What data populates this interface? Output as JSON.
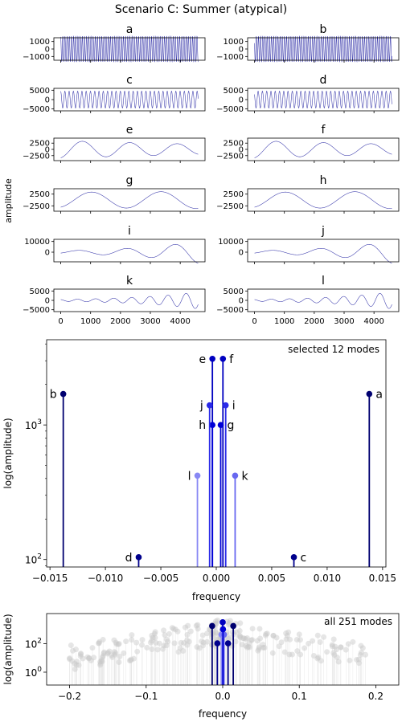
{
  "title": "Scenario C: Summer (atypical)",
  "chart_data": [
    {
      "type": "line",
      "name": "mode-panels",
      "shared_ylabel": "amplitude",
      "x_ticks": [
        0,
        1000,
        2000,
        3000,
        4000
      ],
      "xlim": [
        -230,
        4830
      ],
      "panels": [
        {
          "label": "a",
          "freq": 0.0138,
          "amp": 1700,
          "growth": 0.0,
          "phase": 0.3,
          "ylim": [
            -1500,
            1500
          ],
          "yticks": [
            1000,
            0,
            -1000
          ],
          "yticklabels": [
            "1000",
            "0",
            "−1000"
          ]
        },
        {
          "label": "b",
          "freq": -0.0138,
          "amp": 1700,
          "growth": 0.0,
          "phase": 1.1,
          "ylim": [
            -1500,
            1500
          ],
          "yticks": [
            1000,
            0,
            -1000
          ],
          "yticklabels": [
            "1000",
            "0",
            "−1000"
          ]
        },
        {
          "label": "c",
          "freq": 0.007,
          "amp": 4500,
          "growth": 0.0,
          "phase": 0.2,
          "ylim": [
            -6000,
            6000
          ],
          "yticks": [
            5000,
            0,
            -5000
          ],
          "yticklabels": [
            "5000",
            "0",
            "−5000"
          ]
        },
        {
          "label": "d",
          "freq": -0.007,
          "amp": 4500,
          "growth": 0.0,
          "phase": 0.9,
          "ylim": [
            -6000,
            6000
          ],
          "yticks": [
            5000,
            0,
            -5000
          ],
          "yticklabels": [
            "5000",
            "0",
            "−5000"
          ]
        },
        {
          "label": "e",
          "freq": 0.00063,
          "amp": 3500,
          "growth": -0.00011,
          "phase": 3.4,
          "ylim": [
            -4500,
            4500
          ],
          "yticks": [
            2500,
            0,
            -2500
          ],
          "yticklabels": [
            "2500",
            "0",
            "−2500"
          ]
        },
        {
          "label": "f",
          "freq": -0.00063,
          "amp": 3500,
          "growth": -0.00011,
          "phase": 3.4,
          "ylim": [
            -4500,
            4500
          ],
          "yticks": [
            2500,
            0,
            -2500
          ],
          "yticklabels": [
            "2500",
            "0",
            "−2500"
          ]
        },
        {
          "label": "g",
          "freq": 0.00043,
          "amp": 3300,
          "growth": 2e-05,
          "phase": 3.5,
          "ylim": [
            -4800,
            4800
          ],
          "yticks": [
            2500,
            -2500
          ],
          "yticklabels": [
            "2500",
            "−2500"
          ]
        },
        {
          "label": "h",
          "freq": -0.00043,
          "amp": 3300,
          "growth": 2e-05,
          "phase": 3.5,
          "ylim": [
            -4800,
            4800
          ],
          "yticks": [
            2500,
            -2500
          ],
          "yticklabels": [
            "2500",
            "−2500"
          ]
        },
        {
          "label": "i",
          "freq": 0.00062,
          "amp": 1300,
          "growth": 0.00045,
          "phase": 4.0,
          "ylim": [
            -9000,
            12000
          ],
          "yticks": [
            10000,
            0
          ],
          "yticklabels": [
            "10000",
            "0"
          ]
        },
        {
          "label": "j",
          "freq": -0.00062,
          "amp": 1300,
          "growth": 0.00045,
          "phase": 4.0,
          "ylim": [
            -9000,
            12000
          ],
          "yticks": [
            10000,
            0
          ],
          "yticklabels": [
            "10000",
            "0"
          ]
        },
        {
          "label": "k",
          "freq": 0.00165,
          "amp": 500,
          "growth": 0.00048,
          "phase": 0.5,
          "ylim": [
            -6000,
            6000
          ],
          "yticks": [
            5000,
            0,
            -5000
          ],
          "yticklabels": [
            "5000",
            "0",
            "−5000"
          ]
        },
        {
          "label": "l",
          "freq": -0.00165,
          "amp": 500,
          "growth": 0.00048,
          "phase": 0.5,
          "ylim": [
            -6000,
            6000
          ],
          "yticks": [
            5000,
            0,
            -5000
          ],
          "yticklabels": [
            "5000",
            "0",
            "−5000"
          ]
        }
      ]
    },
    {
      "type": "scatter",
      "name": "selected-modes-spectrum",
      "annotation": "selected 12 modes",
      "xlabel": "frequency",
      "ylabel": "log(amplitude)",
      "xlim": [
        -0.0153,
        0.0153
      ],
      "ylim": [
        88,
        4300
      ],
      "yscale": "log",
      "xticks": [
        -0.015,
        -0.01,
        -0.005,
        0.0,
        0.005,
        0.01,
        0.015
      ],
      "xticklabels": [
        "−0.015",
        "−0.010",
        "−0.005",
        "0.000",
        "0.005",
        "0.010",
        "0.015"
      ],
      "yticks": [
        100,
        1000
      ],
      "points": [
        {
          "label": "a",
          "x": 0.0138,
          "y": 1700,
          "color": "#000070"
        },
        {
          "label": "b",
          "x": -0.0138,
          "y": 1700,
          "color": "#000070"
        },
        {
          "label": "c",
          "x": 0.007,
          "y": 104,
          "color": "#00008c"
        },
        {
          "label": "d",
          "x": -0.007,
          "y": 104,
          "color": "#00008c"
        },
        {
          "label": "e",
          "x": -0.00035,
          "y": 3100,
          "color": "#0000c0"
        },
        {
          "label": "f",
          "x": 0.0006,
          "y": 3100,
          "color": "#0000c0"
        },
        {
          "label": "g",
          "x": 0.0004,
          "y": 1000,
          "color": "#0000d6"
        },
        {
          "label": "h",
          "x": -0.00035,
          "y": 1000,
          "color": "#0000d6"
        },
        {
          "label": "i",
          "x": 0.00085,
          "y": 1400,
          "color": "#2a2ae8"
        },
        {
          "label": "j",
          "x": -0.0006,
          "y": 1400,
          "color": "#2a2ae8"
        },
        {
          "label": "k",
          "x": 0.0017,
          "y": 420,
          "color": "#6868f0"
        },
        {
          "label": "l",
          "x": -0.0017,
          "y": 420,
          "color": "#8888f4"
        }
      ]
    },
    {
      "type": "scatter",
      "name": "all-modes-spectrum",
      "annotation": "all 251 modes",
      "xlabel": "frequency",
      "ylabel": "log(amplitude)",
      "mode_count": 251,
      "xlim": [
        -0.23,
        0.23
      ],
      "ylog_range": [
        -0.9,
        4.1
      ],
      "xticks": [
        -0.2,
        -0.1,
        0.0,
        0.1,
        0.2
      ],
      "xticklabels": [
        "−0.2",
        "−0.1",
        "0.0",
        "0.1",
        "0.2"
      ],
      "yticks_exp": [
        0,
        2
      ],
      "ytick_base": "10",
      "highlighted": [
        {
          "x": -0.0138,
          "y": 1700,
          "color": "#000070"
        },
        {
          "x": 0.0138,
          "y": 1700,
          "color": "#000070"
        },
        {
          "x": -0.007,
          "y": 104,
          "color": "#00008c"
        },
        {
          "x": 0.007,
          "y": 104,
          "color": "#00008c"
        },
        {
          "x": 0.0,
          "y": 3100,
          "color": "#0000c0"
        },
        {
          "x": -0.0017,
          "y": 420,
          "color": "#8888f4"
        },
        {
          "x": 0.0017,
          "y": 420,
          "color": "#6868f0"
        },
        {
          "x": 0.0004,
          "y": 1000,
          "color": "#0000d6"
        }
      ]
    }
  ]
}
